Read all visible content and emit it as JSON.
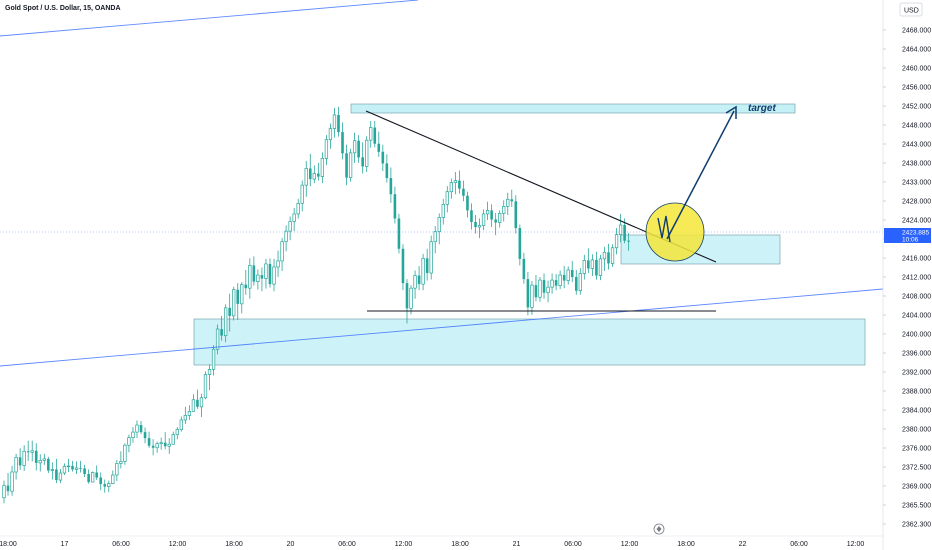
{
  "chart_data": {
    "type": "candlestick",
    "title": "Gold Spot / U.S. Dollar, 15, OANDA",
    "currency": "USD",
    "current_price": "2423.885",
    "countdown": "10:06",
    "y_ticks": [
      "2468.000",
      "2464.000",
      "2460.000",
      "2456.000",
      "2452.000",
      "2448.000",
      "2443.000",
      "2438.000",
      "2433.000",
      "2428.000",
      "2424.000",
      "2420.000",
      "2416.000",
      "2412.000",
      "2408.000",
      "2404.000",
      "2400.000",
      "2396.000",
      "2392.000",
      "2388.000",
      "2384.000",
      "2380.000",
      "2376.000",
      "2372.500",
      "2369.000",
      "2365.500",
      "2362.300"
    ],
    "x_ticks": [
      "18:00",
      "17",
      "06:00",
      "12:00",
      "18:00",
      "20",
      "06:00",
      "12:00",
      "18:00",
      "21",
      "06:00",
      "12:00",
      "18:00",
      "22",
      "06:00",
      "12:00"
    ],
    "annotation_target": "target",
    "colors": {
      "up": "#26a69a",
      "down": "#26a69a",
      "zone": "#b2ebf2",
      "zone_border": "#6a9aa5",
      "line_blue": "#2962ff",
      "highlight": "#f5e63a",
      "arrow": "#0f3d6e"
    },
    "series": [
      {
        "ohlc": [
          [
            2373.2,
            2376.6,
            2372.1,
            2375.6
          ],
          [
            2375.6,
            2378.1,
            2373.6,
            2374.5
          ],
          [
            2374.5,
            2379.5,
            2373.6,
            2378.3
          ],
          [
            2378.3,
            2381.9,
            2376.8,
            2381.2
          ],
          [
            2381.2,
            2383.0,
            2378.7,
            2379.6
          ],
          [
            2379.6,
            2383.6,
            2378.5,
            2382.4
          ],
          [
            2382.4,
            2384.5,
            2380.5,
            2382.2
          ],
          [
            2382.2,
            2384.5,
            2380.4,
            2382.5
          ],
          [
            2382.5,
            2384.0,
            2378.6,
            2380.1
          ],
          [
            2380.1,
            2381.8,
            2378.4,
            2380.6
          ],
          [
            2380.6,
            2381.9,
            2379.7,
            2380.9
          ],
          [
            2380.9,
            2381.3,
            2378.1,
            2378.6
          ],
          [
            2378.6,
            2380.2,
            2376.8,
            2378.8
          ],
          [
            2378.8,
            2380.9,
            2376.1,
            2376.7
          ],
          [
            2376.7,
            2378.9,
            2376.1,
            2378.1
          ],
          [
            2378.1,
            2380.0,
            2377.7,
            2379.4
          ],
          [
            2379.4,
            2380.9,
            2378.3,
            2379.5
          ],
          [
            2379.5,
            2380.5,
            2378.4,
            2378.8
          ],
          [
            2378.8,
            2380.4,
            2377.9,
            2379.1
          ],
          [
            2379.1,
            2380.5,
            2378.2,
            2379.0
          ],
          [
            2379.0,
            2379.7,
            2377.3,
            2377.9
          ],
          [
            2377.9,
            2378.8,
            2376.0,
            2376.3
          ],
          [
            2376.3,
            2378.4,
            2376.3,
            2378.2
          ],
          [
            2378.2,
            2379.6,
            2376.7,
            2377.2
          ],
          [
            2377.2,
            2378.2,
            2374.7,
            2375.9
          ],
          [
            2375.9,
            2376.8,
            2374.2,
            2375.4
          ],
          [
            2375.4,
            2376.6,
            2374.3,
            2376.0
          ],
          [
            2376.0,
            2378.6,
            2375.9,
            2377.7
          ],
          [
            2377.7,
            2380.7,
            2376.5,
            2380.0
          ],
          [
            2380.0,
            2382.4,
            2379.0,
            2380.4
          ],
          [
            2380.4,
            2384.0,
            2379.7,
            2383.6
          ],
          [
            2383.6,
            2385.7,
            2382.2,
            2385.1
          ],
          [
            2385.1,
            2387.2,
            2384.1,
            2386.2
          ],
          [
            2386.2,
            2388.5,
            2385.0,
            2387.6
          ],
          [
            2387.6,
            2388.4,
            2385.8,
            2386.2
          ],
          [
            2386.2,
            2387.1,
            2384.0,
            2385.0
          ],
          [
            2385.0,
            2386.3,
            2383.1,
            2383.5
          ],
          [
            2383.5,
            2384.8,
            2381.6,
            2383.1
          ],
          [
            2383.1,
            2384.3,
            2382.1,
            2383.9
          ],
          [
            2383.9,
            2385.1,
            2382.7,
            2384.1
          ],
          [
            2384.1,
            2386.2,
            2382.8,
            2383.4
          ],
          [
            2383.4,
            2385.0,
            2381.9,
            2383.8
          ],
          [
            2383.8,
            2386.3,
            2383.7,
            2385.7
          ],
          [
            2385.7,
            2387.2,
            2384.8,
            2386.7
          ],
          [
            2386.7,
            2389.3,
            2386.3,
            2388.6
          ],
          [
            2388.6,
            2391.2,
            2387.8,
            2389.5
          ],
          [
            2389.5,
            2391.5,
            2388.6,
            2390.3
          ],
          [
            2390.3,
            2393.7,
            2390.3,
            2392.6
          ],
          [
            2392.6,
            2394.6,
            2390.8,
            2391.2
          ],
          [
            2391.2,
            2393.8,
            2389.2,
            2393.0
          ],
          [
            2393.0,
            2398.2,
            2392.7,
            2397.6
          ],
          [
            2397.6,
            2399.6,
            2394.5,
            2398.6
          ],
          [
            2398.6,
            2403.4,
            2397.4,
            2402.6
          ],
          [
            2402.6,
            2407.5,
            2401.6,
            2406.6
          ],
          [
            2406.6,
            2409.2,
            2404.3,
            2405.3
          ],
          [
            2405.3,
            2411.5,
            2404.0,
            2410.8
          ],
          [
            2410.8,
            2413.6,
            2406.1,
            2409.2
          ],
          [
            2409.2,
            2415.0,
            2408.3,
            2414.4
          ],
          [
            2414.4,
            2415.7,
            2408.4,
            2411.6
          ],
          [
            2411.6,
            2415.9,
            2409.7,
            2415.4
          ],
          [
            2415.4,
            2418.3,
            2413.4,
            2414.7
          ],
          [
            2414.7,
            2420.6,
            2412.6,
            2419.2
          ],
          [
            2419.2,
            2421.0,
            2415.2,
            2416.0
          ],
          [
            2416.0,
            2418.4,
            2414.4,
            2417.3
          ],
          [
            2417.3,
            2418.8,
            2414.1,
            2416.6
          ],
          [
            2416.6,
            2420.5,
            2414.6,
            2419.5
          ],
          [
            2419.5,
            2420.6,
            2414.8,
            2415.5
          ],
          [
            2415.5,
            2420.5,
            2414.1,
            2418.9
          ],
          [
            2418.9,
            2422.1,
            2416.9,
            2420.1
          ],
          [
            2420.1,
            2424.6,
            2418.1,
            2423.9
          ],
          [
            2423.9,
            2427.1,
            2422.0,
            2426.0
          ],
          [
            2426.0,
            2428.9,
            2424.2,
            2427.9
          ],
          [
            2427.9,
            2430.6,
            2426.0,
            2429.4
          ],
          [
            2429.4,
            2432.4,
            2428.5,
            2431.5
          ],
          [
            2431.5,
            2436.0,
            2429.9,
            2435.1
          ],
          [
            2435.1,
            2439.9,
            2432.8,
            2438.4
          ],
          [
            2438.4,
            2441.3,
            2434.9,
            2436.3
          ],
          [
            2436.3,
            2439.0,
            2435.5,
            2437.4
          ],
          [
            2437.4,
            2439.5,
            2436.0,
            2436.8
          ],
          [
            2436.8,
            2441.6,
            2435.5,
            2440.4
          ],
          [
            2440.4,
            2445.0,
            2439.1,
            2444.1
          ],
          [
            2444.1,
            2447.3,
            2442.3,
            2446.3
          ],
          [
            2446.3,
            2450.4,
            2444.5,
            2449.0
          ],
          [
            2449.0,
            2450.6,
            2444.7,
            2445.6
          ],
          [
            2445.6,
            2447.5,
            2440.2,
            2441.4
          ],
          [
            2441.4,
            2443.1,
            2435.1,
            2436.6
          ],
          [
            2436.6,
            2442.3,
            2435.8,
            2441.5
          ],
          [
            2441.5,
            2445.5,
            2439.5,
            2443.9
          ],
          [
            2443.9,
            2445.0,
            2439.5,
            2440.6
          ],
          [
            2440.6,
            2443.6,
            2437.4,
            2438.8
          ],
          [
            2438.8,
            2444.8,
            2437.7,
            2444.0
          ],
          [
            2444.0,
            2447.8,
            2442.5,
            2446.5
          ],
          [
            2446.5,
            2447.8,
            2442.6,
            2443.3
          ],
          [
            2443.3,
            2445.7,
            2440.7,
            2441.7
          ],
          [
            2441.7,
            2443.1,
            2437.9,
            2439.4
          ],
          [
            2439.4,
            2441.2,
            2435.6,
            2436.5
          ],
          [
            2436.5,
            2438.6,
            2431.6,
            2433.3
          ],
          [
            2433.3,
            2434.8,
            2427.5,
            2428.5
          ],
          [
            2428.5,
            2429.4,
            2421.6,
            2422.5
          ],
          [
            2422.5,
            2423.4,
            2414.3,
            2415.7
          ],
          [
            2415.7,
            2416.5,
            2407.7,
            2410.7
          ],
          [
            2410.7,
            2415.3,
            2409.5,
            2414.7
          ],
          [
            2414.7,
            2418.2,
            2412.6,
            2417.2
          ],
          [
            2417.2,
            2419.1,
            2414.3,
            2415.5
          ],
          [
            2415.5,
            2421.5,
            2414.3,
            2420.6
          ],
          [
            2420.6,
            2422.5,
            2416.2,
            2417.7
          ],
          [
            2417.7,
            2425.1,
            2416.4,
            2423.9
          ],
          [
            2423.9,
            2427.0,
            2421.6,
            2425.9
          ],
          [
            2425.9,
            2429.5,
            2423.4,
            2428.7
          ],
          [
            2428.7,
            2432.4,
            2427.3,
            2431.3
          ],
          [
            2431.3,
            2434.9,
            2429.7,
            2433.8
          ],
          [
            2433.8,
            2436.4,
            2432.4,
            2435.6
          ],
          [
            2435.6,
            2437.7,
            2433.3,
            2436.0
          ],
          [
            2436.0,
            2438.0,
            2433.4,
            2434.4
          ],
          [
            2434.4,
            2436.0,
            2431.9,
            2433.0
          ],
          [
            2433.0,
            2433.8,
            2428.7,
            2430.1
          ],
          [
            2430.1,
            2431.5,
            2426.3,
            2427.8
          ],
          [
            2427.8,
            2429.2,
            2425.5,
            2426.8
          ],
          [
            2426.8,
            2428.5,
            2424.6,
            2427.1
          ],
          [
            2427.1,
            2430.3,
            2426.2,
            2429.4
          ],
          [
            2429.4,
            2431.8,
            2428.2,
            2430.1
          ],
          [
            2430.1,
            2431.3,
            2426.8,
            2428.3
          ],
          [
            2428.3,
            2429.6,
            2425.2,
            2427.7
          ],
          [
            2427.7,
            2430.1,
            2426.7,
            2429.5
          ],
          [
            2429.5,
            2432.1,
            2427.9,
            2430.9
          ],
          [
            2430.9,
            2433.6,
            2429.2,
            2432.3
          ],
          [
            2432.3,
            2434.2,
            2430.8,
            2431.9
          ],
          [
            2431.9,
            2433.1,
            2425.5,
            2426.6
          ],
          [
            2426.6,
            2427.3,
            2419.2,
            2420.5
          ],
          [
            2420.5,
            2421.7,
            2415.6,
            2416.5
          ],
          [
            2416.5,
            2417.9,
            2409.3,
            2410.9
          ],
          [
            2410.9,
            2416.1,
            2409.4,
            2415.3
          ],
          [
            2415.3,
            2417.3,
            2412.1,
            2412.9
          ],
          [
            2412.9,
            2416.9,
            2412.0,
            2416.3
          ],
          [
            2416.3,
            2417.6,
            2412.6,
            2413.8
          ],
          [
            2413.8,
            2416.2,
            2411.9,
            2414.9
          ],
          [
            2414.9,
            2417.6,
            2413.6,
            2416.3
          ],
          [
            2416.3,
            2417.5,
            2414.3,
            2415.2
          ],
          [
            2415.2,
            2418.2,
            2414.5,
            2417.3
          ],
          [
            2417.3,
            2419.1,
            2414.7,
            2416.2
          ],
          [
            2416.2,
            2419.0,
            2415.4,
            2418.3
          ],
          [
            2418.3,
            2420.1,
            2415.9,
            2416.9
          ],
          [
            2416.9,
            2418.3,
            2413.4,
            2414.2
          ],
          [
            2414.2,
            2418.7,
            2413.4,
            2417.6
          ],
          [
            2417.6,
            2421.3,
            2416.4,
            2420.2
          ],
          [
            2420.2,
            2422.6,
            2417.7,
            2418.6
          ],
          [
            2418.6,
            2421.4,
            2417.1,
            2420.3
          ],
          [
            2420.3,
            2421.9,
            2416.4,
            2417.2
          ],
          [
            2417.2,
            2421.3,
            2416.3,
            2420.5
          ],
          [
            2420.5,
            2422.9,
            2418.1,
            2421.8
          ],
          [
            2421.8,
            2423.5,
            2418.4,
            2419.6
          ],
          [
            2419.6,
            2423.4,
            2418.9,
            2422.7
          ],
          [
            2422.7,
            2426.6,
            2421.4,
            2425.3
          ],
          [
            2425.3,
            2429.4,
            2423.8,
            2427.2
          ],
          [
            2427.2,
            2428.5,
            2423.6,
            2424.1
          ],
          [
            2424.1,
            2425.6,
            2422.1,
            2423.9
          ]
        ]
      }
    ]
  }
}
